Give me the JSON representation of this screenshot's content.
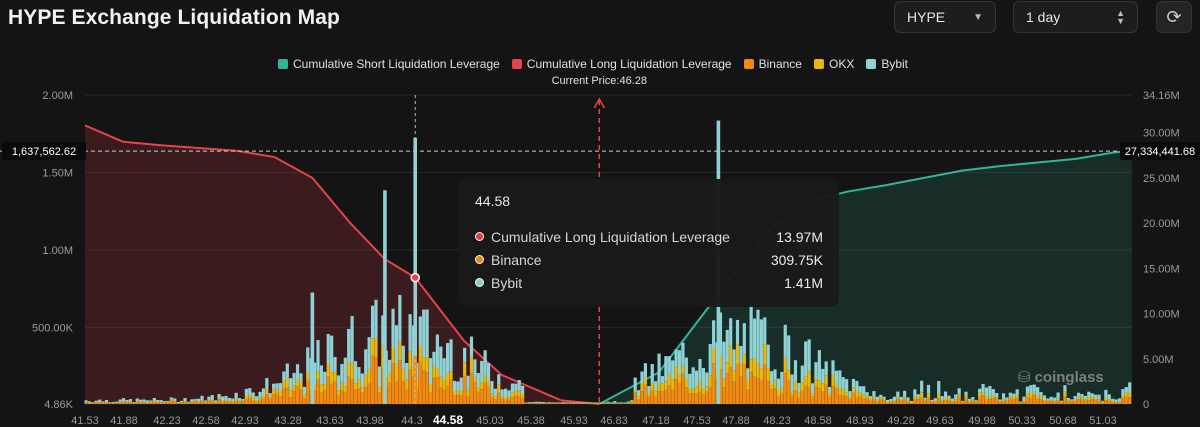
{
  "title": "HYPE Exchange Liquidation Map",
  "controls": {
    "symbol": "HYPE",
    "interval": "1 day"
  },
  "legend": [
    {
      "label": "Cumulative Short Liquidation Leverage",
      "color": "#2fb598"
    },
    {
      "label": "Cumulative Long Liquidation Leverage",
      "color": "#e8424c"
    },
    {
      "label": "Binance",
      "color": "#f08a10"
    },
    {
      "label": "OKX",
      "color": "#e9b80d"
    },
    {
      "label": "Bybit",
      "color": "#8fd2d6"
    }
  ],
  "current_price_label": "Current Price:46.28",
  "tooltip": {
    "title": "44.58",
    "rows": [
      {
        "label": "Cumulative Long Liquidation Leverage",
        "value": "13.97M",
        "color": "#e8424c"
      },
      {
        "label": "Binance",
        "value": "309.75K",
        "color": "#f08a10"
      },
      {
        "label": "Bybit",
        "value": "1.41M",
        "color": "#8fd2d6"
      }
    ]
  },
  "watermark": "coinglass",
  "chart_data": {
    "type": "bar",
    "x_ticks": [
      "41.53",
      "41.88",
      "42.23",
      "42.58",
      "42.93",
      "43.28",
      "43.63",
      "43.98",
      "44.3",
      "44.58",
      "45.03",
      "45.38",
      "45.93",
      "46.83",
      "47.18",
      "47.53",
      "47.88",
      "48.23",
      "48.58",
      "48.93",
      "49.28",
      "49.63",
      "49.98",
      "50.33",
      "50.68",
      "51.03"
    ],
    "x_range": [
      41.53,
      51.2
    ],
    "current_price": 46.28,
    "hover_price": 44.58,
    "left_axis": {
      "ticks": [
        "4.86K",
        "500.00K",
        "1.00M",
        "1.50M",
        "2.00M"
      ],
      "values": [
        4860,
        500000,
        1000000,
        1500000,
        2000000
      ],
      "range": [
        4860,
        2000000
      ]
    },
    "right_axis": {
      "ticks": [
        "0",
        "5.00M",
        "10.00M",
        "15.00M",
        "20.00M",
        "25.00M",
        "30.00M",
        "34.16M"
      ],
      "values": [
        0,
        5000000,
        10000000,
        15000000,
        20000000,
        25000000,
        30000000,
        34160000
      ],
      "range": [
        0,
        34160000
      ]
    },
    "crosshair": {
      "left_value": "1,637,562.62",
      "right_value": "27,334,441.68"
    },
    "series": [
      {
        "name": "Cumulative Long Liquidation Leverage",
        "axis": "right",
        "x": [
          41.53,
          41.88,
          42.23,
          42.58,
          42.93,
          43.28,
          43.63,
          43.98,
          44.3,
          44.58,
          45.03,
          45.38,
          45.93,
          46.28
        ],
        "y": [
          30800000,
          29000000,
          28600000,
          28300000,
          28000000,
          27300000,
          25000000,
          20000000,
          16000000,
          13970000,
          7000000,
          3200000,
          400000,
          0
        ]
      },
      {
        "name": "Cumulative Short Liquidation Leverage",
        "axis": "right",
        "x": [
          46.28,
          46.83,
          47.18,
          47.53,
          47.88,
          48.23,
          48.58,
          48.93,
          49.28,
          49.63,
          49.98,
          50.33,
          50.68,
          51.03,
          51.2
        ],
        "y": [
          0,
          3500000,
          9000000,
          14500000,
          19500000,
          22500000,
          23500000,
          24200000,
          25000000,
          25800000,
          26300000,
          26700000,
          27100000,
          27800000,
          28000000
        ]
      }
    ],
    "bar_series_names": [
      "Binance",
      "OKX",
      "Bybit"
    ],
    "notable_bars": [
      {
        "price": 44.58,
        "Binance": 309750,
        "Bybit": 1410000
      },
      {
        "price": 47.38,
        "Bybit": 1830000
      },
      {
        "price": 44.3,
        "Bybit": 1380000
      },
      {
        "price": 43.63,
        "Bybit": 720000
      }
    ]
  }
}
